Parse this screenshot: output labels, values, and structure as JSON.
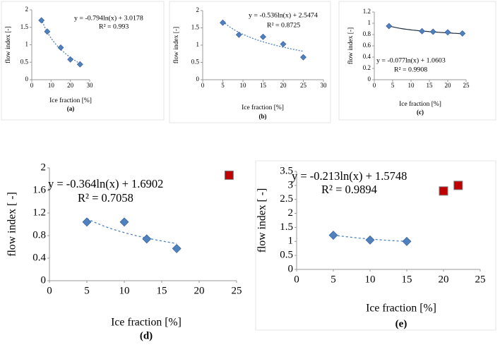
{
  "chart_data": [
    {
      "type": "scatter",
      "xlabel": "Ice fraction [%]",
      "ylabel": "flow index [-]",
      "caption": "(a)",
      "xlim": [
        0,
        30
      ],
      "xticks": [
        0,
        10,
        20,
        30
      ],
      "ylim": [
        0,
        2
      ],
      "yticks": [
        0,
        0.5,
        1,
        1.5,
        2
      ],
      "series": [
        {
          "color": "#4f81bd",
          "marker": "diamond",
          "x": [
            5,
            8,
            15,
            20,
            25
          ],
          "values": [
            1.7,
            1.38,
            0.92,
            0.58,
            0.44
          ]
        }
      ],
      "trendline": {
        "coef": -0.794,
        "const": 3.0178,
        "color": "#4f81bd"
      },
      "equation": "y = -0.794ln(x) + 3.0178",
      "r_squared": "R² = 0.993"
    },
    {
      "type": "scatter",
      "xlabel": "Ice fraction [%]",
      "ylabel": "flow index [-]",
      "caption": "(b)",
      "xlim": [
        0,
        30
      ],
      "xticks": [
        0,
        5,
        10,
        15,
        20,
        25,
        30
      ],
      "ylim": [
        0,
        2
      ],
      "yticks": [
        0,
        0.5,
        1,
        1.5,
        2
      ],
      "series": [
        {
          "color": "#4f81bd",
          "marker": "diamond",
          "x": [
            5,
            9,
            15,
            20,
            25
          ],
          "values": [
            1.65,
            1.3,
            1.24,
            1.03,
            0.65
          ]
        }
      ],
      "trendline": {
        "coef": -0.536,
        "const": 2.5474,
        "color": "#4f81bd"
      },
      "equation": "y = -0.536ln(x) + 2.5474",
      "r_squared": "R² = 0.8725"
    },
    {
      "type": "scatter",
      "xlabel": "Ice fraction [%]",
      "ylabel": "flow index [-]",
      "caption": "(c)",
      "xlim": [
        0,
        25
      ],
      "xticks": [
        0,
        5,
        10,
        15,
        20,
        25
      ],
      "ylim": [
        0,
        1.2
      ],
      "yticks": [
        0,
        0.2,
        0.4,
        0.6,
        0.8,
        1,
        1.2
      ],
      "series": [
        {
          "color": "#4f81bd",
          "marker": "diamond",
          "x": [
            4,
            13,
            16,
            20,
            24
          ],
          "values": [
            0.95,
            0.86,
            0.85,
            0.84,
            0.82
          ]
        }
      ],
      "trendline": {
        "coef": -0.077,
        "const": 1.0603,
        "color": "#1f2d3d"
      },
      "equation": "y = -0.077ln(x) + 1.0603",
      "r_squared": "R² = 0.9908"
    },
    {
      "type": "scatter",
      "xlabel": "Ice fraction [%]",
      "ylabel": "flow index [ -]",
      "caption": "(d)",
      "xlim": [
        0,
        25
      ],
      "xticks": [
        0,
        5,
        10,
        15,
        20,
        25
      ],
      "ylim": [
        0,
        2
      ],
      "yticks": [
        0,
        0.4,
        0.8,
        1.2,
        1.6,
        2
      ],
      "series": [
        {
          "color": "#4f81bd",
          "marker": "diamond",
          "x": [
            5,
            10,
            13,
            17
          ],
          "values": [
            1.04,
            1.04,
            0.74,
            0.57
          ]
        },
        {
          "color": "#c00000",
          "marker": "square",
          "x": [
            24
          ],
          "values": [
            1.87
          ]
        }
      ],
      "trendline": {
        "coef": -0.364,
        "const": 1.6902,
        "color": "#4f81bd"
      },
      "equation": "y = -0.364ln(x) + 1.6902",
      "r_squared": "R² = 0.7058"
    },
    {
      "type": "scatter",
      "xlabel": "Ice fraction [%]",
      "ylabel": "flow index [ -]",
      "caption": "(e)",
      "xlim": [
        0,
        25
      ],
      "xticks": [
        0,
        5,
        10,
        15,
        20,
        25
      ],
      "ylim": [
        0,
        3.5
      ],
      "yticks": [
        0,
        0.5,
        1,
        1.5,
        2,
        2.5,
        3,
        3.5
      ],
      "series": [
        {
          "color": "#4f81bd",
          "marker": "diamond",
          "x": [
            5,
            10,
            15
          ],
          "values": [
            1.22,
            1.05,
            1.0
          ]
        },
        {
          "color": "#c00000",
          "marker": "square",
          "x": [
            20,
            22
          ],
          "values": [
            2.8,
            3.0
          ]
        }
      ],
      "trendline": {
        "coef": -0.213,
        "const": 1.5748,
        "color": "#4f81bd"
      },
      "equation": "y = -0.213ln(x) + 1.5748",
      "r_squared": "R² = 0.9894"
    }
  ]
}
